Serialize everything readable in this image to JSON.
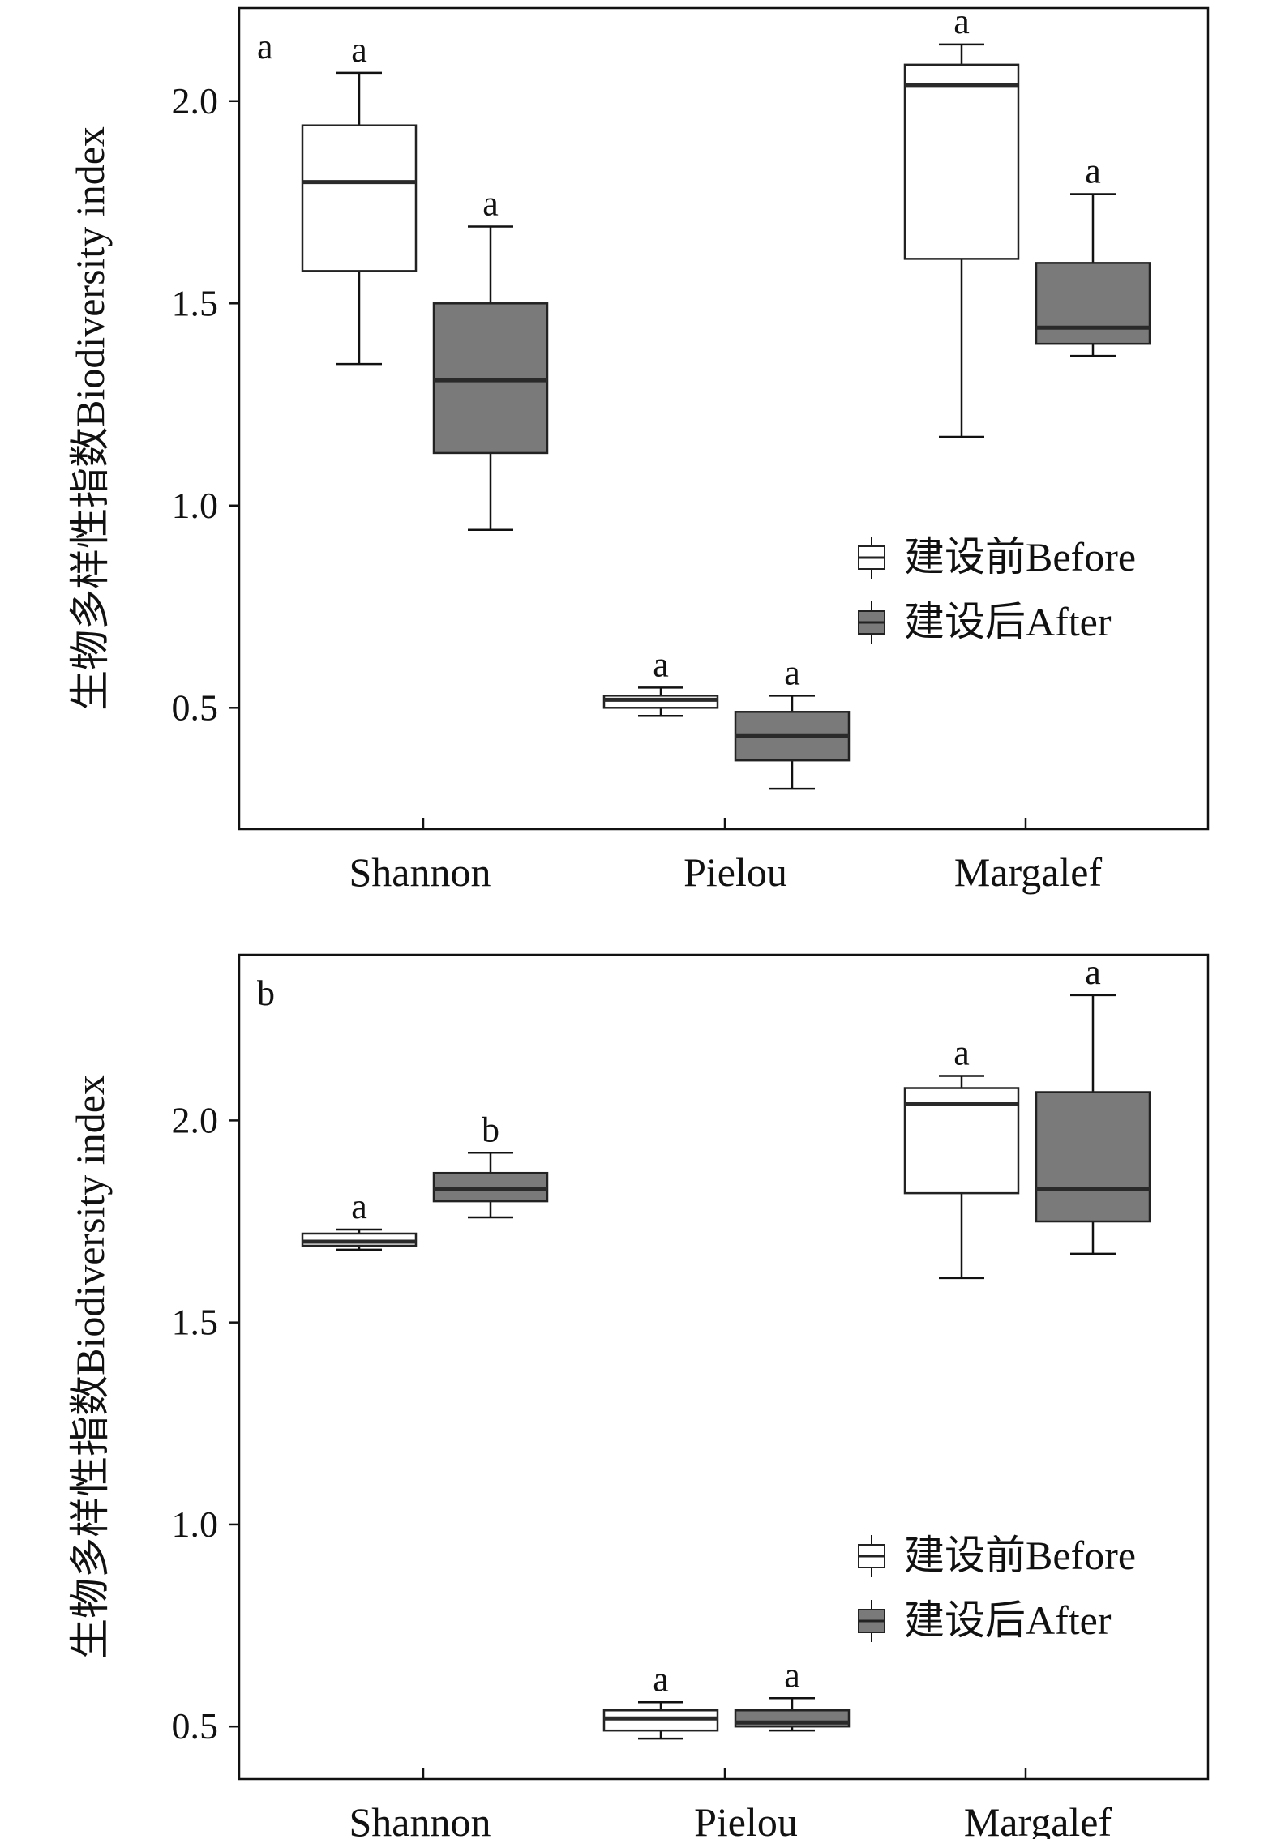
{
  "chart_data": [
    {
      "type": "box",
      "panel_label": "a",
      "ylabel": "生物多样性指数Biodiversity index",
      "categories": [
        "Shannon",
        "Pielou",
        "Margalef"
      ],
      "ylim": [
        0.2,
        2.23
      ],
      "yticks": [
        0.5,
        1.0,
        1.5,
        2.0
      ],
      "ytick_labels": [
        "0.5",
        "1.0",
        "1.5",
        "2.0"
      ],
      "grid": false,
      "legend_position": "center-right",
      "series": [
        {
          "name": "建设前Before",
          "color": "#ffffff",
          "boxes": [
            {
              "category": "Shannon",
              "whisker_low": 1.35,
              "q1": 1.58,
              "median": 1.8,
              "q3": 1.94,
              "whisker_high": 2.07,
              "sig": "a"
            },
            {
              "category": "Pielou",
              "whisker_low": 0.48,
              "q1": 0.5,
              "median": 0.52,
              "q3": 0.53,
              "whisker_high": 0.55,
              "sig": "a"
            },
            {
              "category": "Margalef",
              "whisker_low": 1.17,
              "q1": 1.61,
              "median": 2.04,
              "q3": 2.09,
              "whisker_high": 2.14,
              "sig": "a"
            }
          ]
        },
        {
          "name": "建设后After",
          "color": "#7a7a7a",
          "boxes": [
            {
              "category": "Shannon",
              "whisker_low": 0.94,
              "q1": 1.13,
              "median": 1.31,
              "q3": 1.5,
              "whisker_high": 1.69,
              "sig": "a"
            },
            {
              "category": "Pielou",
              "whisker_low": 0.3,
              "q1": 0.37,
              "median": 0.43,
              "q3": 0.49,
              "whisker_high": 0.53,
              "sig": "a"
            },
            {
              "category": "Margalef",
              "whisker_low": 1.37,
              "q1": 1.4,
              "median": 1.44,
              "q3": 1.6,
              "whisker_high": 1.77,
              "sig": "a"
            }
          ]
        }
      ]
    },
    {
      "type": "box",
      "panel_label": "b",
      "ylabel": "生物多样性指数Biodiversity index",
      "categories": [
        "Shannon",
        "Pielou",
        "Margalef"
      ],
      "ylim": [
        0.37,
        2.41
      ],
      "yticks": [
        0.5,
        1.0,
        1.5,
        2.0
      ],
      "ytick_labels": [
        "0.5",
        "1.0",
        "1.5",
        "2.0"
      ],
      "grid": false,
      "legend_position": "lower-right",
      "series": [
        {
          "name": "建设前Before",
          "color": "#ffffff",
          "boxes": [
            {
              "category": "Shannon",
              "whisker_low": 1.68,
              "q1": 1.69,
              "median": 1.7,
              "q3": 1.72,
              "whisker_high": 1.73,
              "sig": "a"
            },
            {
              "category": "Pielou",
              "whisker_low": 0.47,
              "q1": 0.49,
              "median": 0.52,
              "q3": 0.54,
              "whisker_high": 0.56,
              "sig": "a"
            },
            {
              "category": "Margalef",
              "whisker_low": 1.61,
              "q1": 1.82,
              "median": 2.04,
              "q3": 2.08,
              "whisker_high": 2.11,
              "sig": "a"
            }
          ]
        },
        {
          "name": "建设后After",
          "color": "#7a7a7a",
          "boxes": [
            {
              "category": "Shannon",
              "whisker_low": 1.76,
              "q1": 1.8,
              "median": 1.83,
              "q3": 1.87,
              "whisker_high": 1.92,
              "sig": "b"
            },
            {
              "category": "Pielou",
              "whisker_low": 0.49,
              "q1": 0.5,
              "median": 0.51,
              "q3": 0.54,
              "whisker_high": 0.57,
              "sig": "a"
            },
            {
              "category": "Margalef",
              "whisker_low": 1.67,
              "q1": 1.75,
              "median": 1.83,
              "q3": 2.07,
              "whisker_high": 2.31,
              "sig": "a"
            }
          ]
        }
      ]
    }
  ]
}
